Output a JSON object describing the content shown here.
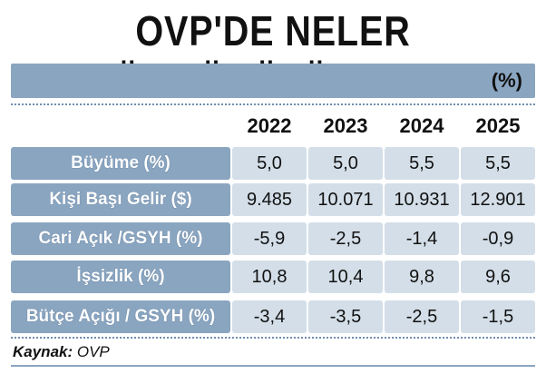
{
  "title": "OVP'DE NELER ÖNGÖRÜLÜYOR?",
  "unit": "(%)",
  "years": [
    "2022",
    "2023",
    "2024",
    "2025"
  ],
  "rows": [
    {
      "label": "Büyüme (%)",
      "values": [
        "5,0",
        "5,0",
        "5,5",
        "5,5"
      ]
    },
    {
      "label": "Kişi Başı Gelir ($)",
      "values": [
        "9.485",
        "10.071",
        "10.931",
        "12.901"
      ]
    },
    {
      "label": "Cari Açık /GSYH (%)",
      "values": [
        "-5,9",
        "-2,5",
        "-1,4",
        "-0,9"
      ]
    },
    {
      "label": "İşsizlik (%)",
      "values": [
        "10,8",
        "10,4",
        "9,8",
        "9,6"
      ]
    },
    {
      "label": "Bütçe Açığı / GSYH (%)",
      "values": [
        "-3,4",
        "-3,5",
        "-2,5",
        "-1,5"
      ]
    }
  ],
  "source": {
    "label": "Kaynak:",
    "value": "OVP"
  },
  "colors": {
    "label_bg": "#8aa5c0",
    "cell_bg": "#d3dee8",
    "dots": "#6f8db0"
  }
}
